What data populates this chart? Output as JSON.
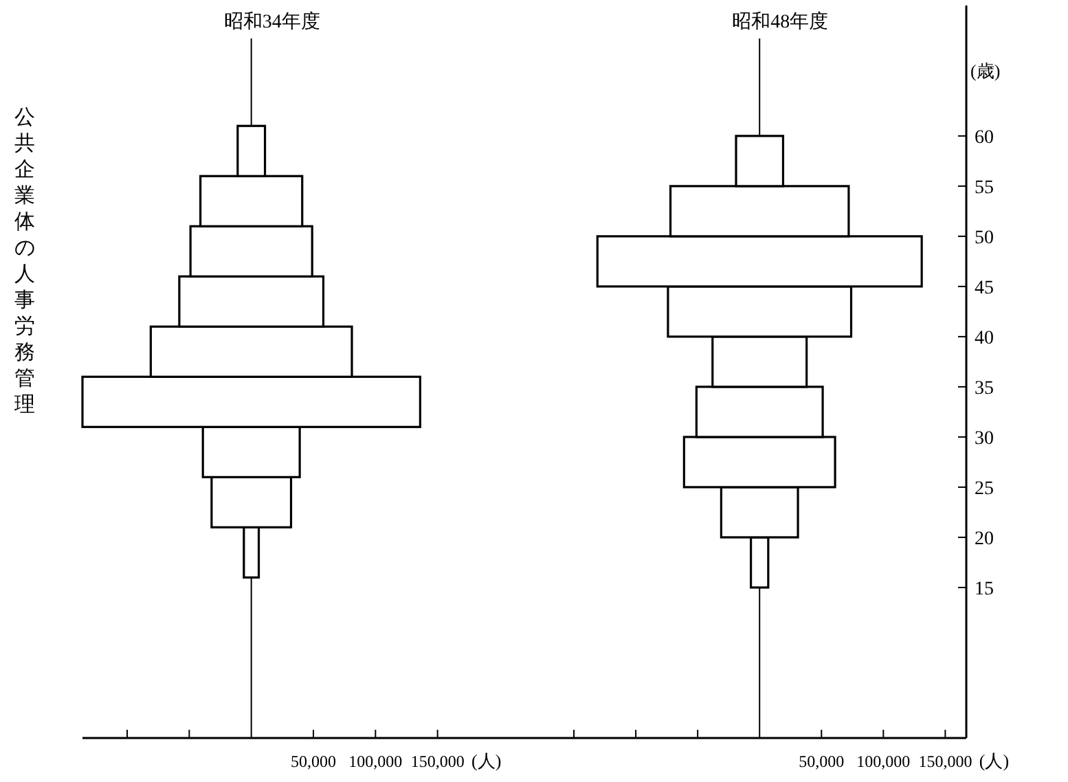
{
  "chart_data": [
    {
      "type": "bar",
      "orientation": "horizontal",
      "title": "昭和34年度",
      "annotations": [
        "公共企業体の人事労務管理"
      ],
      "xlabel": "(人)",
      "x": [
        18.5,
        23.5,
        28.5,
        33.5,
        38.5,
        43.5,
        48.5,
        53.5,
        58.5
      ],
      "series": [
        {
          "color": "#000000",
          "values": [
            12000,
            64000,
            78000,
            272000,
            162000,
            116000,
            98000,
            82000,
            22000
          ],
          "base": [
            -6000,
            -32000,
            -39000,
            -136000,
            -81000,
            -58000,
            -49000,
            -41000,
            -11000
          ]
        }
      ],
      "xlim": [
        -136000,
        205000
      ],
      "xticks": [
        {
          "value": -100000,
          "label": null
        },
        {
          "value": -50000,
          "label": null
        },
        {
          "value": 50000,
          "label": "50,000"
        },
        {
          "value": 100000,
          "label": "100,000"
        },
        {
          "value": 150000,
          "label": "150,000"
        }
      ],
      "ylim": [
        0,
        73
      ],
      "yticks": [
        15,
        20,
        25,
        30,
        35,
        40,
        45,
        50,
        55,
        60
      ],
      "tick_labels": "x",
      "grid": false
    },
    {
      "type": "bar",
      "orientation": "horizontal",
      "title": "昭和48年度",
      "xlabel": "(人)",
      "ylabel": "(歳)",
      "x": [
        17.5,
        22.5,
        27.5,
        32.5,
        37.5,
        42.5,
        47.5,
        52.5,
        57.5
      ],
      "series": [
        {
          "color": "#000000",
          "values": [
            14000,
            62000,
            122000,
            102000,
            76000,
            148000,
            262000,
            144000,
            38000
          ],
          "base": [
            -7000,
            -31000,
            -61000,
            -51000,
            -38000,
            -74000,
            -131000,
            -72000,
            -19000
          ]
        }
      ],
      "xlim": [
        -205000,
        167000
      ],
      "xticks": [
        {
          "value": -150000,
          "label": null
        },
        {
          "value": -100000,
          "label": null
        },
        {
          "value": -50000,
          "label": null
        },
        {
          "value": 50000,
          "label": "50,000"
        },
        {
          "value": 100000,
          "label": "100,000"
        },
        {
          "value": 150000,
          "label": "150,000"
        }
      ],
      "ylim": [
        0,
        73
      ],
      "yticks": [
        15,
        20,
        25,
        30,
        35,
        40,
        45,
        50,
        55,
        60
      ],
      "grid": false
    }
  ]
}
